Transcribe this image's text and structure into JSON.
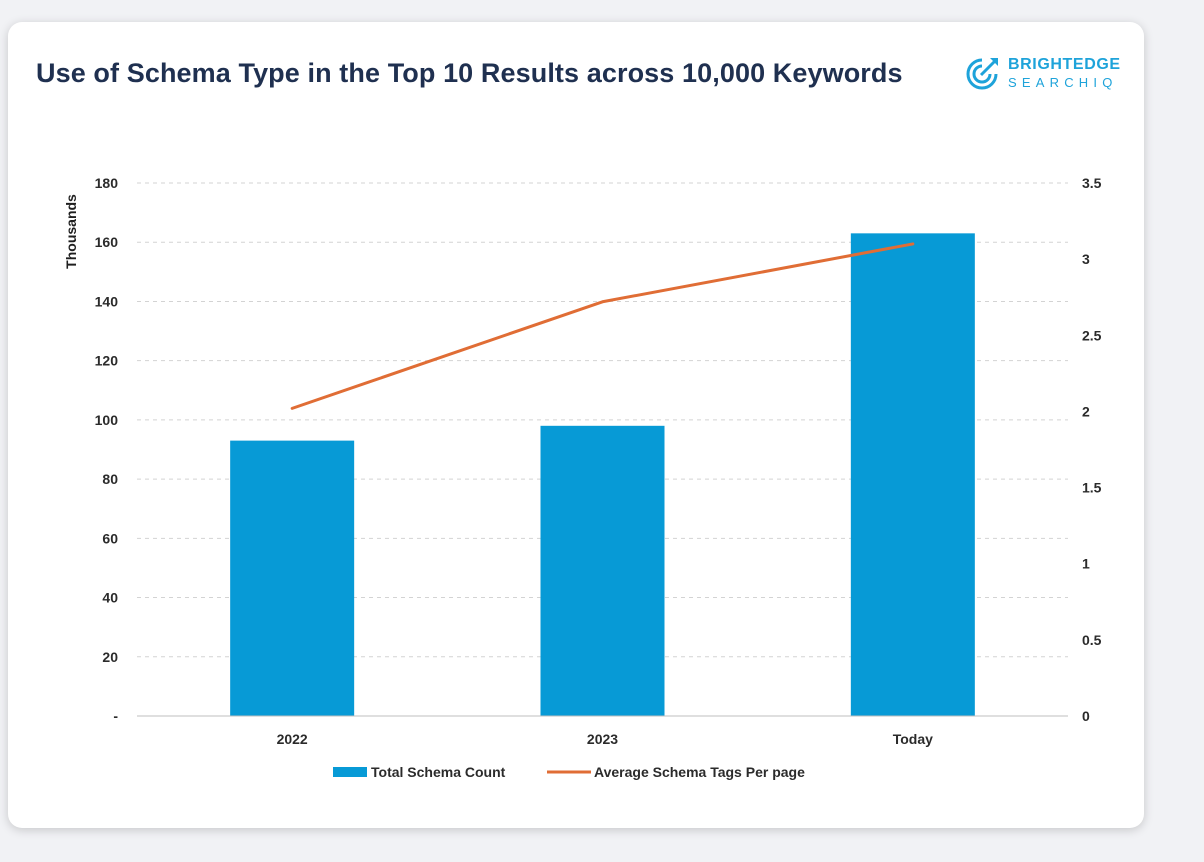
{
  "header": {
    "title": "Use of Schema Type in the Top 10 Results across 10,000 Keywords",
    "logo_line1": "BRIGHTEDGE",
    "logo_line2": "SEARCHIQ"
  },
  "colors": {
    "bar": "#079ad6",
    "line": "#e06d35",
    "grid": "#d3d3d3",
    "title": "#1f3050",
    "logo": "#1ea3da"
  },
  "chart_data": {
    "type": "bar",
    "title": "Use of Schema Type in the Top 10 Results across 10,000 Keywords",
    "categories": [
      "2022",
      "2023",
      "Today"
    ],
    "ylabel": "Thousands",
    "ylim": [
      0,
      180
    ],
    "y2lim": [
      0,
      3.5
    ],
    "y_ticks": [
      "-",
      "20",
      "40",
      "60",
      "80",
      "100",
      "120",
      "140",
      "160",
      "180"
    ],
    "y_tick_values": [
      0,
      20,
      40,
      60,
      80,
      100,
      120,
      140,
      160,
      180
    ],
    "y2_ticks": [
      "0",
      "0.5",
      "1",
      "1.5",
      "2",
      "2.5",
      "3",
      "3.5"
    ],
    "y2_tick_values": [
      0,
      0.5,
      1,
      1.5,
      2,
      2.5,
      3,
      3.5
    ],
    "grid": true,
    "legend_position": "bottom",
    "series": [
      {
        "name": "Total Schema Count",
        "type": "bar",
        "axis": "left",
        "values": [
          93,
          98,
          163
        ]
      },
      {
        "name": "Average Schema Tags Per page",
        "type": "line",
        "axis": "right",
        "values": [
          2.02,
          2.72,
          3.1
        ]
      }
    ]
  }
}
